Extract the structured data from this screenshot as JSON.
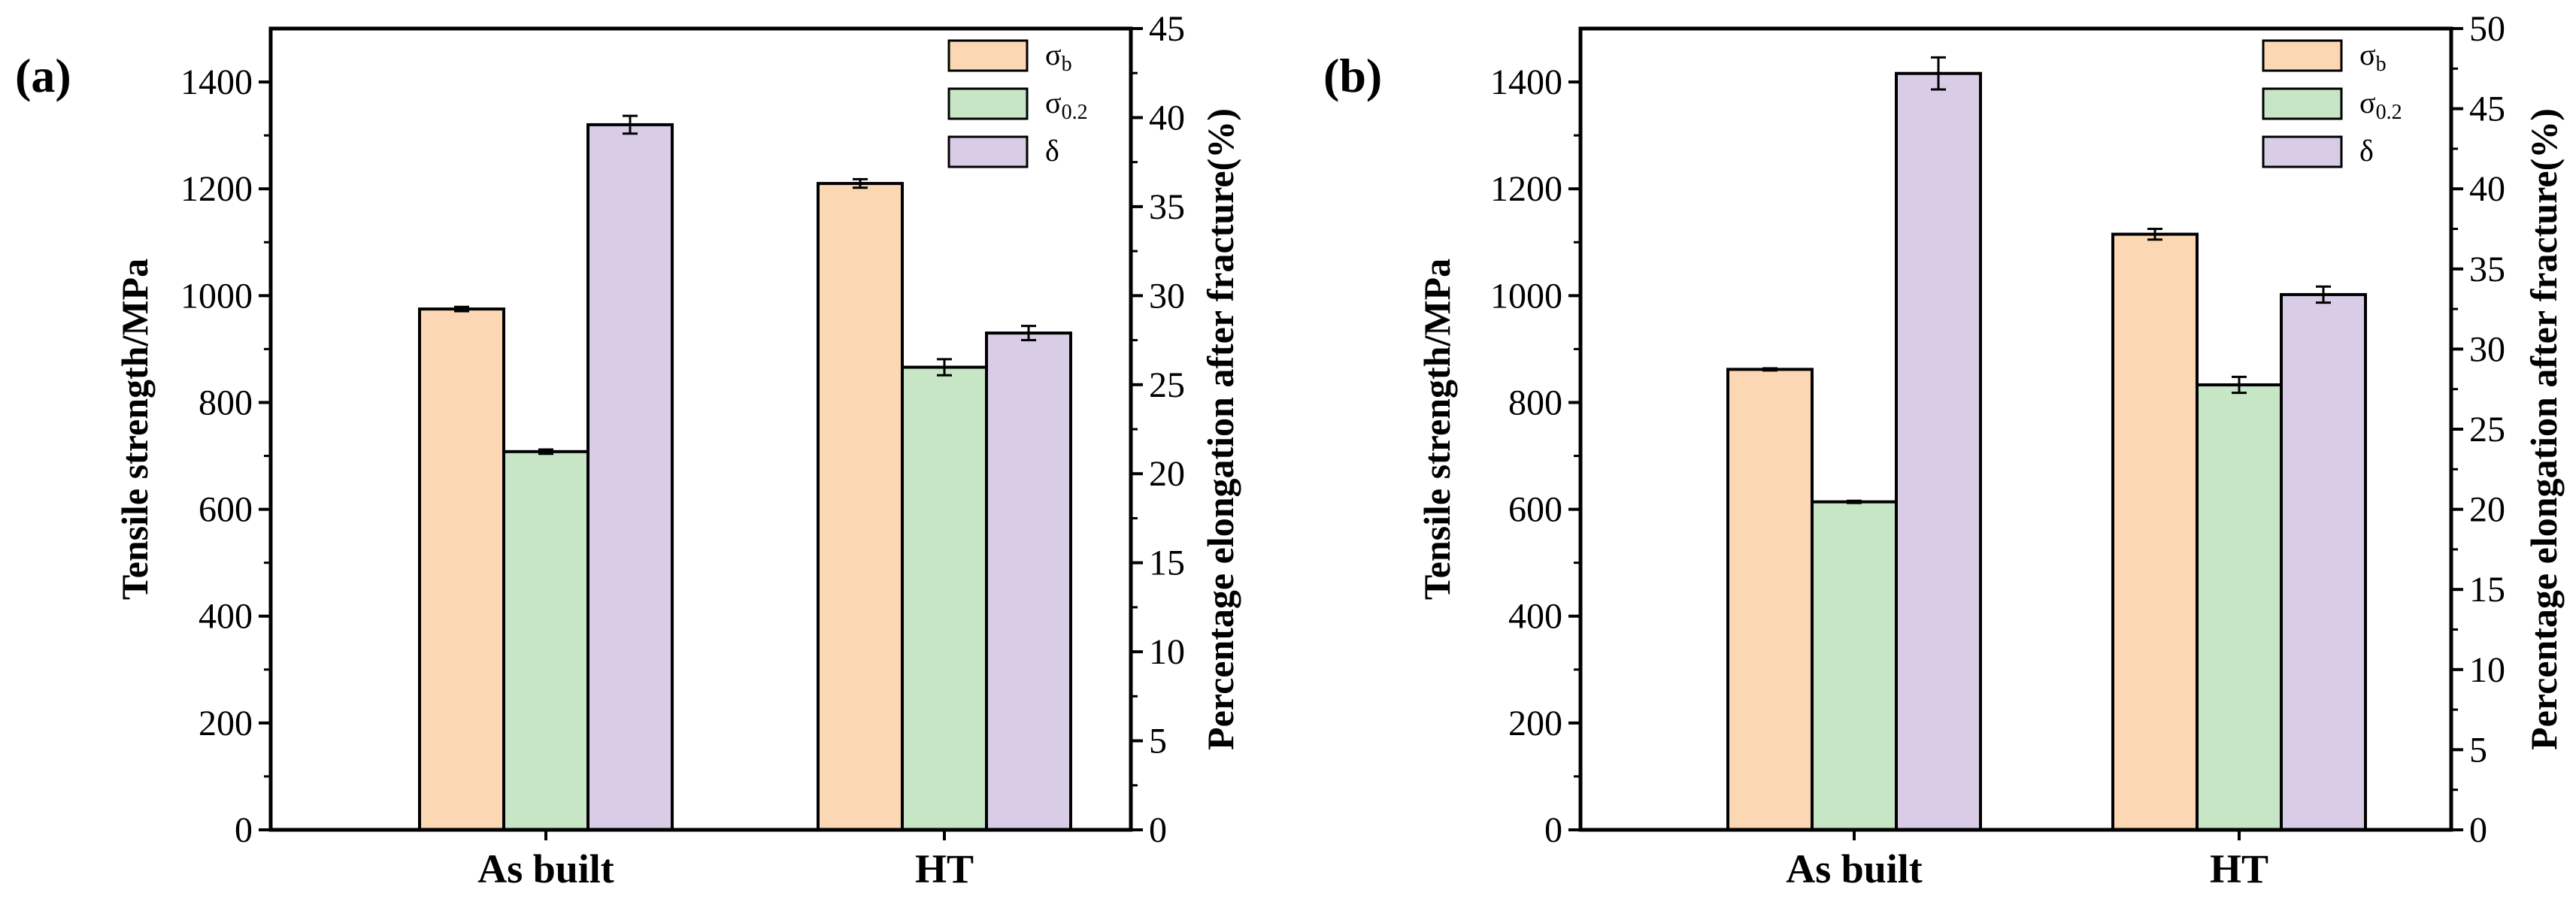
{
  "colors": {
    "sigma_b": "#fcd7b4",
    "sigma_02": "#c6e6c6",
    "delta": "#d8cce6",
    "stroke": "#000000"
  },
  "legend": [
    {
      "key": "sigma_b",
      "base": "σ",
      "sub": "b"
    },
    {
      "key": "sigma_02",
      "base": "σ",
      "sub": "0.2"
    },
    {
      "key": "delta",
      "base": "δ",
      "sub": ""
    }
  ],
  "chart_data": [
    {
      "type": "bar",
      "panel_label": "(a)",
      "categories": [
        "As built",
        "HT"
      ],
      "ylabel": "Tensile strength/MPa",
      "y2label": "Percentage elongation after fracture(%)",
      "ylim": [
        0,
        1500
      ],
      "y2lim": [
        0,
        45
      ],
      "yticks": [
        0,
        200,
        400,
        600,
        800,
        1000,
        1200,
        1400
      ],
      "y2ticks": [
        0,
        5,
        10,
        15,
        20,
        25,
        30,
        35,
        40,
        45
      ],
      "series": [
        {
          "key": "sigma_b",
          "name": "σb",
          "axis": "left",
          "values": [
            975,
            1210
          ],
          "errors": [
            4,
            8
          ]
        },
        {
          "key": "sigma_02",
          "name": "σ0.2",
          "axis": "left",
          "values": [
            708,
            866
          ],
          "errors": [
            4,
            15
          ]
        },
        {
          "key": "delta",
          "name": "δ",
          "axis": "right",
          "values": [
            39.6,
            27.9
          ],
          "errors": [
            0.5,
            0.4
          ]
        }
      ]
    },
    {
      "type": "bar",
      "panel_label": "(b)",
      "categories": [
        "As built",
        "HT"
      ],
      "ylabel": "Tensile strength/MPa",
      "y2label": "Percentage elongation after fracture(%)",
      "ylim": [
        0,
        1500
      ],
      "y2lim": [
        0,
        50
      ],
      "yticks": [
        0,
        200,
        400,
        600,
        800,
        1000,
        1200,
        1400
      ],
      "y2ticks": [
        0,
        5,
        10,
        15,
        20,
        25,
        30,
        35,
        40,
        45,
        50
      ],
      "series": [
        {
          "key": "sigma_b",
          "name": "σb",
          "axis": "left",
          "values": [
            862,
            1115
          ],
          "errors": [
            2,
            10
          ]
        },
        {
          "key": "sigma_02",
          "name": "σ0.2",
          "axis": "left",
          "values": [
            614,
            833
          ],
          "errors": [
            2,
            15
          ]
        },
        {
          "key": "delta",
          "name": "δ",
          "axis": "right",
          "values": [
            47.2,
            33.4
          ],
          "errors": [
            1.0,
            0.5
          ]
        }
      ]
    }
  ]
}
